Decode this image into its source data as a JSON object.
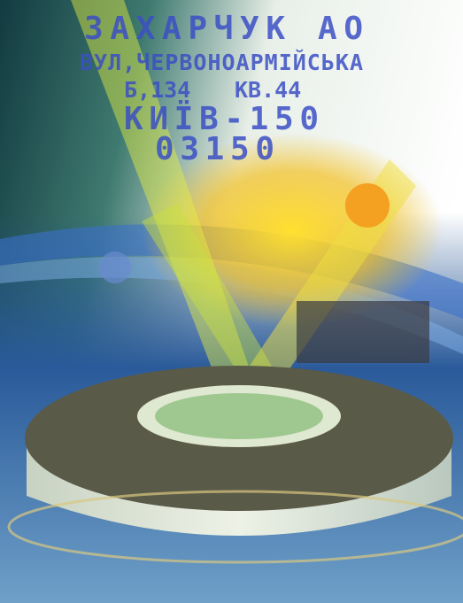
{
  "address": {
    "name": "ЗАХАРЧУК АО",
    "street": "ВУЛ,ЧЕРВОНОАРМІЙСЬКА",
    "building": "Б,134",
    "apartment": "КВ.44",
    "city": "КИЇВ-150",
    "postcode": "03150"
  }
}
